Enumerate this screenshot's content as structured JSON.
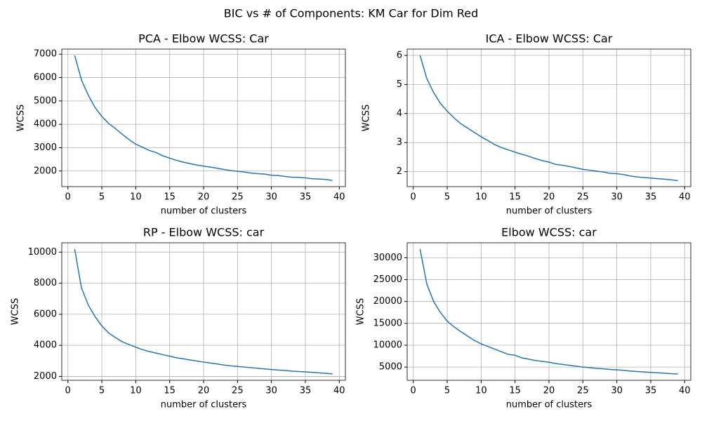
{
  "title": "BIC vs # of Components: KM Car for Dim Red",
  "chart_data": [
    {
      "type": "line",
      "title": "PCA - Elbow WCSS: Car",
      "xlabel": "number of clusters",
      "ylabel": "WCSS",
      "color": "#1f77b4",
      "grid": true,
      "x": [
        1,
        2,
        3,
        4,
        5,
        6,
        7,
        8,
        9,
        10,
        11,
        12,
        13,
        14,
        15,
        16,
        17,
        18,
        19,
        20,
        21,
        22,
        23,
        24,
        25,
        26,
        27,
        28,
        29,
        30,
        31,
        32,
        33,
        34,
        35,
        36,
        37,
        38,
        39
      ],
      "values": [
        6950,
        5900,
        5250,
        4720,
        4340,
        4040,
        3820,
        3580,
        3350,
        3150,
        3020,
        2880,
        2790,
        2650,
        2550,
        2460,
        2380,
        2320,
        2260,
        2210,
        2170,
        2120,
        2070,
        2020,
        1990,
        1960,
        1910,
        1890,
        1870,
        1820,
        1810,
        1770,
        1740,
        1730,
        1710,
        1670,
        1660,
        1640,
        1600
      ],
      "xlim": [
        -0.9,
        40.9
      ],
      "xticks": [
        0,
        5,
        10,
        15,
        20,
        25,
        30,
        35,
        40
      ],
      "ylim": [
        1333,
        7217
      ],
      "yticks": [
        2000,
        3000,
        4000,
        5000,
        6000,
        7000
      ]
    },
    {
      "type": "line",
      "title": "ICA - Elbow WCSS: Car",
      "xlabel": "number of clusters",
      "ylabel": "WCSS",
      "color": "#1f77b4",
      "grid": true,
      "x": [
        1,
        2,
        3,
        4,
        5,
        6,
        7,
        8,
        9,
        10,
        11,
        12,
        13,
        14,
        15,
        16,
        17,
        18,
        19,
        20,
        21,
        22,
        23,
        24,
        25,
        26,
        27,
        28,
        29,
        30,
        31,
        32,
        33,
        34,
        35,
        36,
        37,
        38,
        39
      ],
      "values": [
        6.0,
        5.2,
        4.72,
        4.35,
        4.08,
        3.85,
        3.65,
        3.5,
        3.35,
        3.2,
        3.07,
        2.93,
        2.83,
        2.75,
        2.67,
        2.6,
        2.53,
        2.45,
        2.38,
        2.33,
        2.25,
        2.22,
        2.18,
        2.13,
        2.08,
        2.05,
        2.02,
        1.99,
        1.94,
        1.93,
        1.9,
        1.85,
        1.82,
        1.8,
        1.78,
        1.76,
        1.74,
        1.72,
        1.69
      ],
      "xlim": [
        -0.9,
        40.9
      ],
      "xticks": [
        0,
        5,
        10,
        15,
        20,
        25,
        30,
        35,
        40
      ],
      "ylim": [
        1.485,
        6.215
      ],
      "yticks": [
        2,
        3,
        4,
        5,
        6
      ]
    },
    {
      "type": "line",
      "title": "RP - Elbow WCSS: car",
      "xlabel": "number of clusters",
      "ylabel": "WCSS",
      "color": "#1f77b4",
      "grid": true,
      "x": [
        1,
        2,
        3,
        4,
        5,
        6,
        7,
        8,
        9,
        10,
        11,
        12,
        13,
        14,
        15,
        16,
        17,
        18,
        19,
        20,
        21,
        22,
        23,
        24,
        25,
        26,
        27,
        28,
        29,
        30,
        31,
        32,
        33,
        34,
        35,
        36,
        37,
        38,
        39
      ],
      "values": [
        10200,
        7700,
        6600,
        5850,
        5250,
        4800,
        4500,
        4230,
        4050,
        3880,
        3720,
        3600,
        3500,
        3400,
        3300,
        3200,
        3130,
        3060,
        2990,
        2920,
        2860,
        2800,
        2730,
        2680,
        2640,
        2600,
        2560,
        2520,
        2480,
        2440,
        2410,
        2380,
        2340,
        2310,
        2290,
        2260,
        2230,
        2200,
        2160
      ],
      "xlim": [
        -0.9,
        40.9
      ],
      "xticks": [
        0,
        5,
        10,
        15,
        20,
        25,
        30,
        35,
        40
      ],
      "ylim": [
        1748,
        10602
      ],
      "yticks": [
        2000,
        4000,
        6000,
        8000,
        10000
      ]
    },
    {
      "type": "line",
      "title": "Elbow WCSS: car",
      "xlabel": "number of clusters",
      "ylabel": "WCSS",
      "color": "#1f77b4",
      "grid": true,
      "x": [
        1,
        2,
        3,
        4,
        5,
        6,
        7,
        8,
        9,
        10,
        11,
        12,
        13,
        14,
        15,
        16,
        17,
        18,
        19,
        20,
        21,
        22,
        23,
        24,
        25,
        26,
        27,
        28,
        29,
        30,
        31,
        32,
        33,
        34,
        35,
        36,
        37,
        38,
        39
      ],
      "values": [
        32000,
        24000,
        20000,
        17500,
        15500,
        14200,
        13100,
        12100,
        11100,
        10300,
        9700,
        9100,
        8500,
        7900,
        7700,
        7100,
        6800,
        6500,
        6300,
        6100,
        5800,
        5600,
        5400,
        5200,
        5000,
        4850,
        4700,
        4600,
        4450,
        4350,
        4250,
        4100,
        3980,
        3880,
        3780,
        3700,
        3600,
        3500,
        3400
      ],
      "xlim": [
        -0.9,
        40.9
      ],
      "xticks": [
        0,
        5,
        10,
        15,
        20,
        25,
        30,
        35,
        40
      ],
      "ylim": [
        1970,
        33430
      ],
      "yticks": [
        5000,
        10000,
        15000,
        20000,
        25000,
        30000
      ]
    }
  ]
}
